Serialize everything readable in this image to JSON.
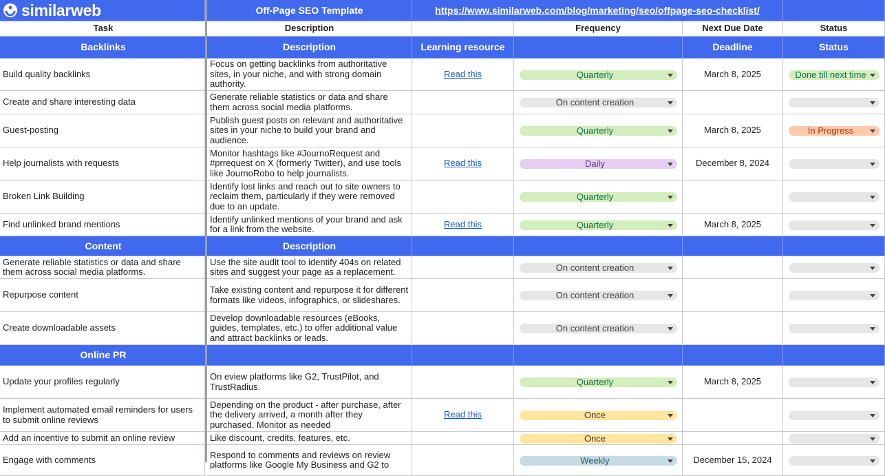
{
  "header": {
    "logo": "similarweb",
    "title": "Off-Page SEO Template",
    "url": "https://www.similarweb.com/blog/marketing/seo/offpage-seo-checklist/"
  },
  "column_headers": [
    "Task",
    "Description",
    null,
    "Frequency",
    "Next Due Date",
    "Status"
  ],
  "sections": [
    {
      "headers": [
        "Backlinks",
        "Description",
        "Learning resource",
        null,
        "Deadline",
        "Status"
      ],
      "rows": [
        {
          "task": "Build quality backlinks",
          "description": "Focus on getting backlinks from authoritative sites, in your niche, and with strong domain authority.",
          "resource": "Read this",
          "frequency": {
            "text": "Quarterly",
            "bg": "#d4edbc",
            "fg": "#11734b"
          },
          "due": "March 8, 2025",
          "status": {
            "text": "Done till next time",
            "bg": "#d4edbc",
            "fg": "#11734b"
          }
        },
        {
          "task": "Create and share interesting data",
          "description": "Generate reliable statistics or data and share them across social media platforms.",
          "resource": null,
          "frequency": {
            "text": "On content creation",
            "bg": "#e6e6e6",
            "fg": "#3c3c3c"
          },
          "due": null,
          "status": null
        },
        {
          "task": "Guest-posting",
          "description": "Publish guest posts on relevant and authoritative sites in your niche to build your brand and audience.",
          "resource": null,
          "frequency": {
            "text": "Quarterly",
            "bg": "#d4edbc",
            "fg": "#11734b"
          },
          "due": "March 8, 2025",
          "status": {
            "text": "In Progress",
            "bg": "#ffc8aa",
            "fg": "#a23c12"
          }
        },
        {
          "task": "Help journalists with requests",
          "description": "Monitor hashtags like #JournoRequest and #prrequest on X (formerly Twitter), and use tools like JournoRobo to help journalists.",
          "resource": "Read this",
          "frequency": {
            "text": "Daily",
            "bg": "#e6cff2",
            "fg": "#5a3286"
          },
          "due": "December 8, 2024",
          "status": null
        },
        {
          "task": "Broken Link Building",
          "description": "Identify lost links and reach out to site owners to reclaim them, particularly if they were removed due to an update.",
          "resource": null,
          "frequency": {
            "text": "Quarterly",
            "bg": "#d4edbc",
            "fg": "#11734b"
          },
          "due": null,
          "status": null
        },
        {
          "task": "Find unlinked brand mentions",
          "description": "Identify unlinked mentions of your brand and ask for a link from the website.",
          "resource": "Read this",
          "frequency": {
            "text": "Quarterly",
            "bg": "#d4edbc",
            "fg": "#11734b"
          },
          "due": "March 8, 2025",
          "status": null
        }
      ]
    },
    {
      "headers": [
        "Content",
        "Description",
        null,
        null,
        null,
        null
      ],
      "rows": [
        {
          "task": "Generate reliable statistics or data and share them across social media platforms.",
          "description": "Use the site audit tool to identify 404s on related sites and suggest your page as a replacement.",
          "resource": null,
          "frequency": {
            "text": "On content creation",
            "bg": "#e6e6e6",
            "fg": "#3c3c3c"
          },
          "due": null,
          "status": null
        },
        {
          "task": "Repurpose content",
          "description": "Take existing content and repurpose it for different formats like videos, infographics, or slideshares.",
          "resource": null,
          "frequency": {
            "text": "On content creation",
            "bg": "#e6e6e6",
            "fg": "#3c3c3c"
          },
          "due": null,
          "status": null
        },
        {
          "task": "Create downloadable assets",
          "description": "Develop downloadable resources (eBooks, guides, templates, etc.) to offer additional value and attract backlinks or leads.",
          "resource": null,
          "frequency": {
            "text": "On content creation",
            "bg": "#e6e6e6",
            "fg": "#3c3c3c"
          },
          "due": null,
          "status": null
        }
      ]
    },
    {
      "headers": [
        "Online PR",
        null,
        null,
        null,
        null,
        null
      ],
      "rows": [
        {
          "task": "Update your profiles regularly",
          "description": "On eview platforms like G2, TrustPilot, and TrustRadius.",
          "resource": null,
          "frequency": {
            "text": "Quarterly",
            "bg": "#d4edbc",
            "fg": "#11734b"
          },
          "due": "March 8, 2025",
          "status": null
        },
        {
          "task": "Implement automated email reminders for users to submit online reviews",
          "description": "Depending on the product - after purchase, after the delivery arrived, a month after they purchased. Monitor as needed",
          "resource": "Read this",
          "frequency": {
            "text": "Once",
            "bg": "#ffe5a0",
            "fg": "#473821"
          },
          "due": null,
          "status": null
        },
        {
          "task": "Add an incentive to submit an online review",
          "description": "Like discount, credits, features, etc.",
          "resource": null,
          "frequency": {
            "text": "Once",
            "bg": "#ffe5a0",
            "fg": "#473821"
          },
          "due": null,
          "status": null
        },
        {
          "task": "Engage with comments",
          "description": "Respond to comments and reviews on review platforms like Google My Business and G2 to",
          "resource": null,
          "frequency": {
            "text": "Weekly",
            "bg": "#c6dbe1",
            "fg": "#215a6c"
          },
          "due": "December 15, 2024",
          "status": null
        }
      ]
    }
  ]
}
